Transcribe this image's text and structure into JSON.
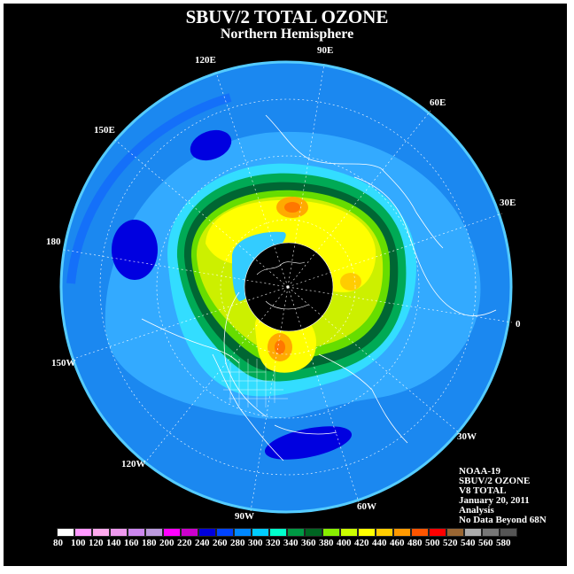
{
  "title": "SBUV/2 TOTAL OZONE",
  "subtitle": "Northern Hemisphere",
  "longitude_labels": [
    "90E",
    "60E",
    "30E",
    "0",
    "30W",
    "60W",
    "90W",
    "120W",
    "150W",
    "180",
    "150E",
    "120E"
  ],
  "info": {
    "satellite": "NOAA-19",
    "product": "SBUV/2 OZONE",
    "version": "V8 TOTAL",
    "date": "January 20, 2011",
    "type": "Analysis",
    "note": "No Data Beyond 68N"
  },
  "colorbar": {
    "ticks": [
      "80",
      "100",
      "120",
      "140",
      "160",
      "180",
      "200",
      "220",
      "240",
      "260",
      "280",
      "300",
      "320",
      "340",
      "360",
      "380",
      "400",
      "420",
      "440",
      "460",
      "480",
      "500",
      "520",
      "540",
      "560",
      "580"
    ],
    "colors": [
      "#ffffff",
      "#ff99ff",
      "#ffaaee",
      "#ee99ee",
      "#cc88ee",
      "#bb99dd",
      "#ff00ff",
      "#cc00cc",
      "#0000dd",
      "#0044ff",
      "#0088ff",
      "#00ccff",
      "#00ffcc",
      "#009944",
      "#006622",
      "#88ee00",
      "#ccff00",
      "#ffff00",
      "#ffcc00",
      "#ff9900",
      "#ff5500",
      "#ff0000",
      "#996633",
      "#aaaaaa",
      "#777777",
      "#555555"
    ]
  }
}
